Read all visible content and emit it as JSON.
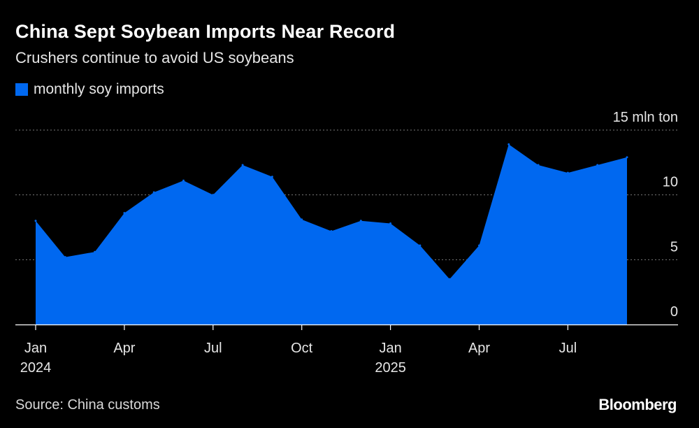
{
  "header": {
    "title": "China Sept Soybean Imports Near Record",
    "subtitle": "Crushers continue to avoid US soybeans"
  },
  "footer": {
    "source": "Source: China customs",
    "logo": "Bloomberg"
  },
  "colors": {
    "background": "#000000",
    "area": "#0068f0",
    "grid": "#7a7a7a"
  },
  "chart_data": {
    "type": "area",
    "legend": [
      "monthly soy imports"
    ],
    "legend_position": "top-left",
    "x": [
      "2024-01",
      "2024-02",
      "2024-03",
      "2024-04",
      "2024-05",
      "2024-06",
      "2024-07",
      "2024-08",
      "2024-09",
      "2024-10",
      "2024-11",
      "2024-12",
      "2025-01",
      "2025-02",
      "2025-03",
      "2025-04",
      "2025-05",
      "2025-06",
      "2025-07",
      "2025-08",
      "2025-09"
    ],
    "series": [
      {
        "name": "monthly soy imports",
        "values": [
          8.0,
          5.2,
          5.6,
          8.6,
          10.2,
          11.1,
          10.0,
          12.3,
          11.4,
          8.1,
          7.2,
          8.0,
          7.8,
          6.1,
          3.5,
          6.1,
          13.9,
          12.3,
          11.7,
          12.3,
          12.9
        ]
      }
    ],
    "ylim": [
      0,
      15
    ],
    "yticks": [
      {
        "value": 0,
        "label": "0"
      },
      {
        "value": 5,
        "label": "5"
      },
      {
        "value": 10,
        "label": "10"
      },
      {
        "value": 15,
        "label": "15 mln ton"
      }
    ],
    "xticks": [
      {
        "index": 0,
        "label": "Jan",
        "sublabel": "2024"
      },
      {
        "index": 3,
        "label": "Apr",
        "sublabel": ""
      },
      {
        "index": 6,
        "label": "Jul",
        "sublabel": ""
      },
      {
        "index": 9,
        "label": "Oct",
        "sublabel": ""
      },
      {
        "index": 12,
        "label": "Jan",
        "sublabel": "2025"
      },
      {
        "index": 15,
        "label": "Apr",
        "sublabel": ""
      },
      {
        "index": 18,
        "label": "Jul",
        "sublabel": ""
      }
    ],
    "grid": true,
    "grid_style": "dotted-horizontal"
  }
}
